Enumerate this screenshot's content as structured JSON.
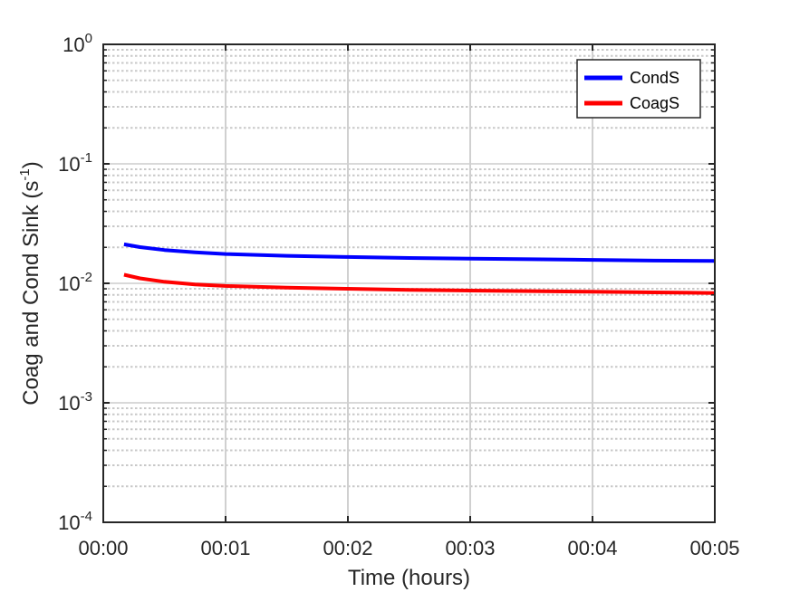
{
  "chart_data": {
    "type": "line",
    "xlabel": "Time (hours)",
    "ylabel": {
      "text": "Coag and Cond Sink (s",
      "unit_superscript": "-1",
      "close": ")"
    },
    "x_ticks": [
      "00:00",
      "00:01",
      "00:02",
      "00:03",
      "00:04",
      "00:05"
    ],
    "x_tick_minutes": [
      0,
      1,
      2,
      3,
      4,
      5
    ],
    "xlim_minutes": [
      0,
      5
    ],
    "y_scale": "log",
    "ylim": [
      0.0001,
      1
    ],
    "y_ticks": [
      {
        "base": "10",
        "exp": "-4",
        "value": 0.0001
      },
      {
        "base": "10",
        "exp": "-3",
        "value": 0.001
      },
      {
        "base": "10",
        "exp": "-2",
        "value": 0.01
      },
      {
        "base": "10",
        "exp": "-1",
        "value": 0.1
      },
      {
        "base": "10",
        "exp": "0",
        "value": 1
      }
    ],
    "grid": true,
    "minor_grid": true,
    "legend_position": "top-right",
    "series": [
      {
        "name": "CondS",
        "color": "#0000ff",
        "x_minutes": [
          0.17,
          0.3,
          0.5,
          0.75,
          1.0,
          1.5,
          2.0,
          2.5,
          3.0,
          3.5,
          4.0,
          4.5,
          5.0
        ],
        "values": [
          0.0212,
          0.0201,
          0.019,
          0.0182,
          0.0176,
          0.017,
          0.0166,
          0.0163,
          0.0161,
          0.0159,
          0.0157,
          0.0155,
          0.0154
        ]
      },
      {
        "name": "CoagS",
        "color": "#ff0000",
        "x_minutes": [
          0.17,
          0.3,
          0.5,
          0.75,
          1.0,
          1.5,
          2.0,
          2.5,
          3.0,
          3.5,
          4.0,
          4.5,
          5.0
        ],
        "values": [
          0.0118,
          0.011,
          0.0103,
          0.0098,
          0.0095,
          0.0092,
          0.009,
          0.0088,
          0.0087,
          0.0086,
          0.0085,
          0.0084,
          0.0083
        ]
      }
    ]
  }
}
